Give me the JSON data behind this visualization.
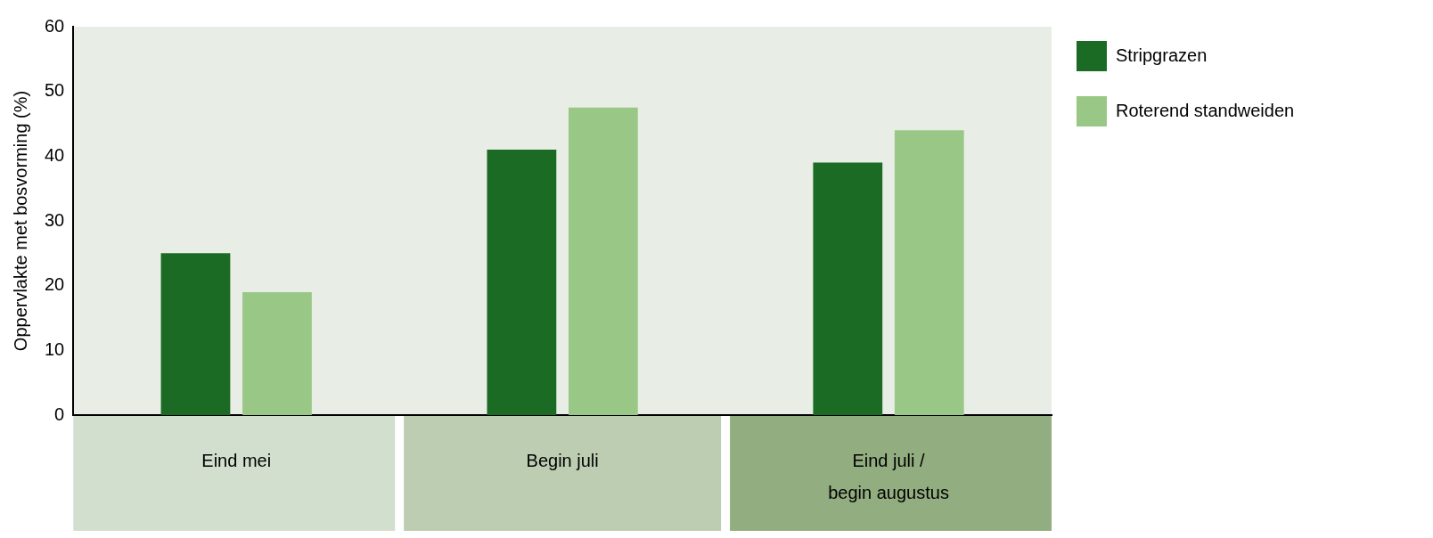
{
  "chart_data": {
    "type": "bar",
    "ylabel": "Oppervlakte met bosvorming (%)",
    "categories": [
      "Eind mei",
      "Begin juli",
      "Eind juli /\nbegin augustus"
    ],
    "series": [
      {
        "name": "Stripgrazen",
        "color": "#1c6b24",
        "values": [
          25,
          41,
          39
        ]
      },
      {
        "name": "Roterend standweiden",
        "color": "#99c886",
        "values": [
          19,
          47.5,
          44
        ]
      }
    ],
    "ylim": [
      0,
      60
    ],
    "yticks": [
      0,
      10,
      20,
      30,
      40,
      50,
      60
    ],
    "grid": false,
    "legend": "right"
  }
}
